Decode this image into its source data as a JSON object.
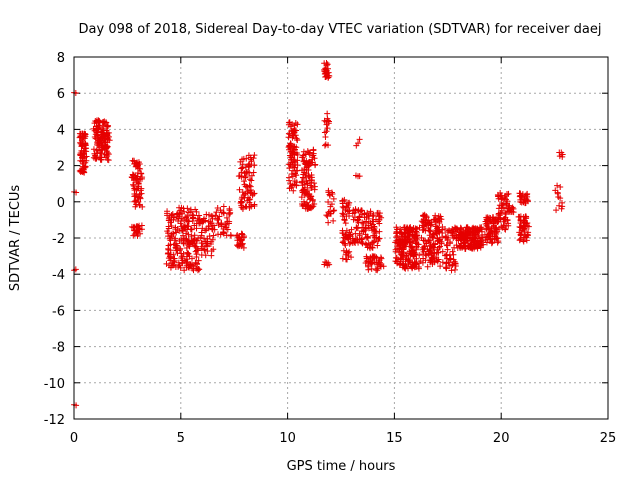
{
  "chart_data": {
    "type": "scatter",
    "title": "Day 098 of 2018, Sidereal Day-to-day VTEC variation (SDTVAR) for receiver daej",
    "xlabel": "GPS time / hours",
    "ylabel": "SDTVAR / TECUs",
    "xlim": [
      0,
      25
    ],
    "ylim": [
      -12,
      8
    ],
    "xticks": [
      0,
      5,
      10,
      15,
      20,
      25
    ],
    "yticks": [
      -12,
      -10,
      -8,
      -6,
      -4,
      -2,
      0,
      2,
      4,
      6,
      8
    ],
    "grid": true,
    "marker": "+",
    "color": "#e60000",
    "series": [
      {
        "name": "SDTVAR",
        "clusters": [
          {
            "x": [
              0.0,
              0.1
            ],
            "y": [
              6.1,
              6.0
            ],
            "n": 2
          },
          {
            "x": [
              0.0,
              0.1
            ],
            "y": [
              0.6,
              0.5
            ],
            "n": 2
          },
          {
            "x": [
              0.0,
              0.1
            ],
            "y": [
              -3.6,
              -3.8
            ],
            "n": 2
          },
          {
            "x": [
              0.0,
              0.1
            ],
            "y": [
              -11.2,
              -11.3
            ],
            "n": 2
          },
          {
            "x": [
              0.25,
              0.6
            ],
            "y": [
              1.6,
              3.8
            ],
            "n": 80
          },
          {
            "x": [
              0.9,
              1.7
            ],
            "y": [
              2.3,
              4.5
            ],
            "n": 140
          },
          {
            "x": [
              2.7,
              3.2
            ],
            "y": [
              -0.3,
              2.3
            ],
            "n": 70
          },
          {
            "x": [
              2.7,
              3.2
            ],
            "y": [
              -1.9,
              -1.3
            ],
            "n": 25
          },
          {
            "x": [
              4.3,
              4.9
            ],
            "y": [
              -3.7,
              -0.5
            ],
            "n": 70
          },
          {
            "x": [
              4.8,
              5.9
            ],
            "y": [
              -3.8,
              -0.3
            ],
            "n": 140
          },
          {
            "x": [
              5.8,
              6.6
            ],
            "y": [
              -3.0,
              -0.7
            ],
            "n": 60
          },
          {
            "x": [
              6.6,
              7.4
            ],
            "y": [
              -1.9,
              -0.2
            ],
            "n": 40
          },
          {
            "x": [
              7.6,
              8.0
            ],
            "y": [
              -2.6,
              -1.7
            ],
            "n": 25
          },
          {
            "x": [
              7.7,
              8.5
            ],
            "y": [
              -0.4,
              2.7
            ],
            "n": 80
          },
          {
            "x": [
              10.0,
              10.5
            ],
            "y": [
              0.6,
              4.5
            ],
            "n": 90
          },
          {
            "x": [
              10.6,
              11.3
            ],
            "y": [
              -0.4,
              2.9
            ],
            "n": 110
          },
          {
            "x": [
              11.7,
              11.95
            ],
            "y": [
              6.8,
              7.7
            ],
            "n": 25
          },
          {
            "x": [
              11.7,
              11.95
            ],
            "y": [
              3.1,
              5.1
            ],
            "n": 15
          },
          {
            "x": [
              11.7,
              11.95
            ],
            "y": [
              -3.6,
              -3.3
            ],
            "n": 6
          },
          {
            "x": [
              11.8,
              12.2
            ],
            "y": [
              -1.2,
              0.9
            ],
            "n": 20
          },
          {
            "x": [
              12.5,
              13.0
            ],
            "y": [
              -3.2,
              0.4
            ],
            "n": 60
          },
          {
            "x": [
              13.0,
              13.6
            ],
            "y": [
              -2.3,
              -0.4
            ],
            "n": 50
          },
          {
            "x": [
              13.2,
              13.4
            ],
            "y": [
              3.1,
              3.5
            ],
            "n": 3
          },
          {
            "x": [
              13.2,
              13.4
            ],
            "y": [
              1.3,
              1.6
            ],
            "n": 3
          },
          {
            "x": [
              13.5,
              14.4
            ],
            "y": [
              -2.6,
              -0.5
            ],
            "n": 70
          },
          {
            "x": [
              13.6,
              14.5
            ],
            "y": [
              -3.8,
              -2.9
            ],
            "n": 45
          },
          {
            "x": [
              15.0,
              16.2
            ],
            "y": [
              -3.7,
              -1.4
            ],
            "n": 220
          },
          {
            "x": [
              16.2,
              17.3
            ],
            "y": [
              -3.6,
              -0.7
            ],
            "n": 150
          },
          {
            "x": [
              17.3,
              18.0
            ],
            "y": [
              -3.8,
              -1.4
            ],
            "n": 60
          },
          {
            "x": [
              17.9,
              19.2
            ],
            "y": [
              -2.6,
              -1.4
            ],
            "n": 170
          },
          {
            "x": [
              19.2,
              19.9
            ],
            "y": [
              -2.3,
              -0.8
            ],
            "n": 80
          },
          {
            "x": [
              19.8,
              20.4
            ],
            "y": [
              -1.6,
              0.5
            ],
            "n": 60
          },
          {
            "x": [
              20.3,
              20.6
            ],
            "y": [
              -0.6,
              -0.3
            ],
            "n": 12
          },
          {
            "x": [
              20.8,
              21.3
            ],
            "y": [
              -2.2,
              -0.8
            ],
            "n": 50
          },
          {
            "x": [
              20.8,
              21.3
            ],
            "y": [
              -0.1,
              0.5
            ],
            "n": 25
          },
          {
            "x": [
              22.5,
              22.9
            ],
            "y": [
              -0.5,
              0.9
            ],
            "n": 12
          },
          {
            "x": [
              22.7,
              22.9
            ],
            "y": [
              2.4,
              2.8
            ],
            "n": 5
          }
        ]
      }
    ]
  }
}
